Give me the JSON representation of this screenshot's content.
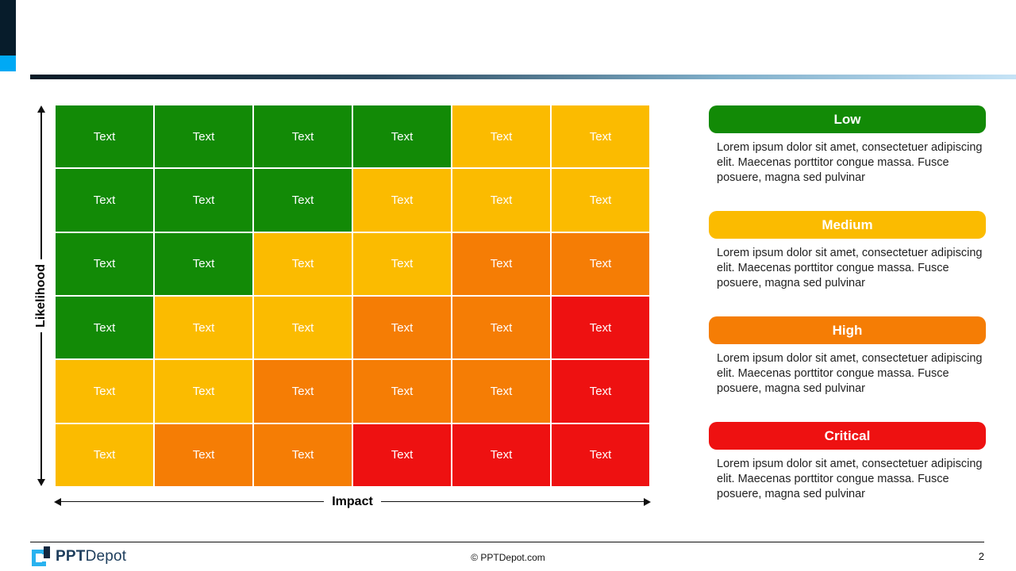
{
  "colors": {
    "green": "#128A06",
    "yellow": "#FBBB00",
    "orange": "#F57D05",
    "red": "#EE1111",
    "corner_dark": "#071C2B",
    "corner_blue": "#00A9F4",
    "logo_cyan": "#29B2EF",
    "logo_navy": "#14273F"
  },
  "matrix": {
    "cell_label": "Text",
    "y_axis_label": "Likelihood",
    "x_axis_label": "Impact",
    "rows": [
      [
        "green",
        "green",
        "green",
        "green",
        "yellow",
        "yellow"
      ],
      [
        "green",
        "green",
        "green",
        "yellow",
        "yellow",
        "yellow"
      ],
      [
        "green",
        "green",
        "yellow",
        "yellow",
        "orange",
        "orange"
      ],
      [
        "green",
        "yellow",
        "yellow",
        "orange",
        "orange",
        "red"
      ],
      [
        "yellow",
        "yellow",
        "orange",
        "orange",
        "orange",
        "red"
      ],
      [
        "yellow",
        "orange",
        "orange",
        "red",
        "red",
        "red"
      ]
    ]
  },
  "legend": [
    {
      "label": "Low",
      "color_key": "green",
      "description": "Lorem ipsum dolor sit amet, consectetuer adipiscing elit. Maecenas porttitor congue massa. Fusce posuere, magna sed pulvinar"
    },
    {
      "label": "Medium",
      "color_key": "yellow",
      "description": "Lorem ipsum dolor sit amet, consectetuer adipiscing elit. Maecenas porttitor congue massa. Fusce posuere, magna sed pulvinar"
    },
    {
      "label": "High",
      "color_key": "orange",
      "description": "Lorem ipsum dolor sit amet, consectetuer adipiscing elit. Maecenas porttitor congue massa. Fusce posuere, magna sed pulvinar"
    },
    {
      "label": "Critical",
      "color_key": "red",
      "description": "Lorem ipsum dolor sit amet, consectetuer adipiscing elit. Maecenas porttitor congue massa. Fusce posuere, magna sed pulvinar"
    }
  ],
  "footer": {
    "logo_bold": "PPT",
    "logo_light": "Depot",
    "copyright": "© PPTDepot.com",
    "page_number": "2"
  }
}
